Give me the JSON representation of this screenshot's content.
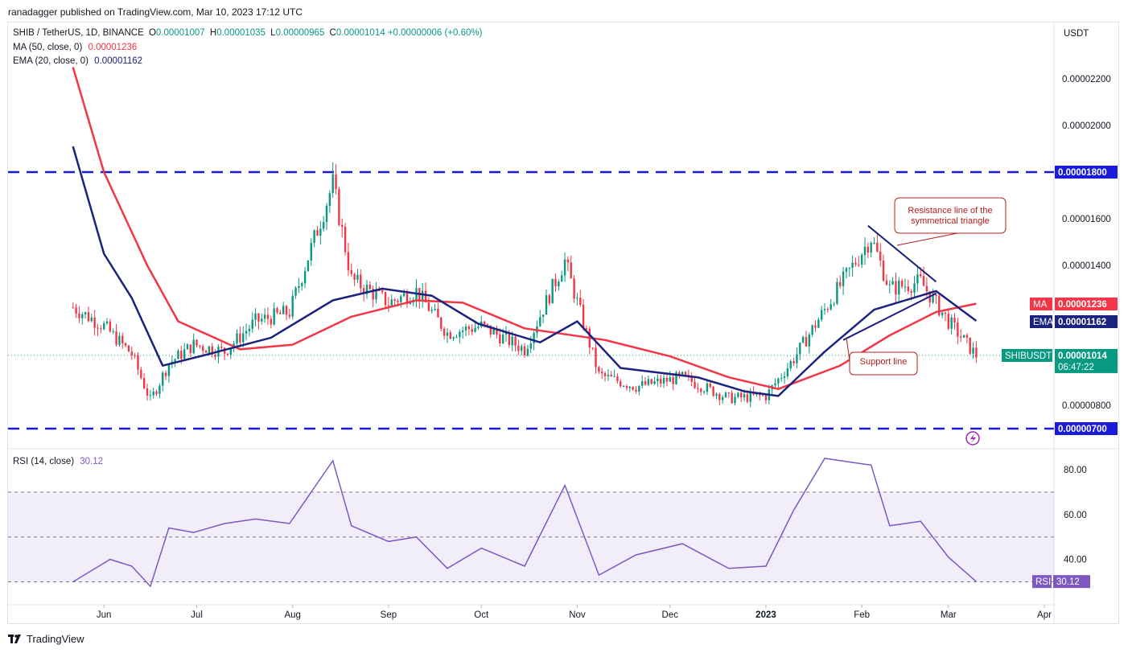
{
  "header": {
    "publisher": "ranadagger published on TradingView.com, Mar 10, 2023 17:12 UTC"
  },
  "legend": {
    "symbol": "SHIB / TetherUS, 1D, BINANCE",
    "o_label": "O",
    "o_value": "0.00001007",
    "h_label": "H",
    "h_value": "0.00001035",
    "l_label": "L",
    "l_value": "0.00000965",
    "c_label": "C",
    "c_value": "0.00001014",
    "change": "+0.00000006 (+0.60%)",
    "ma_label": "MA (50, close, 0)",
    "ma_value": "0.00001236",
    "ema_label": "EMA (20, close, 0)",
    "ema_value": "0.00001162",
    "rsi_label": "RSI (14, close)",
    "rsi_value": "30.12"
  },
  "footer": {
    "brand": "TradingView"
  },
  "colors": {
    "up": "#089981",
    "down": "#f23645",
    "ma": "#f23645",
    "ema": "#1a237e",
    "rsi": "#7e57c2",
    "level_line": "#1a1adb",
    "annotation": "#b71c1c"
  },
  "chart_data": {
    "type": "candlestick",
    "symbol": "SHIBUSDT",
    "y_axis_unit": "USDT",
    "y_ticks": [
      "0.00002200",
      "0.00002000",
      "0.00001600",
      "0.00001400",
      "0.00000800"
    ],
    "y_tick_values": [
      2.2e-05,
      2e-05,
      1.6e-05,
      1.4e-05,
      8e-06
    ],
    "x_ticks": [
      "Jun",
      "Jul",
      "Aug",
      "Sep",
      "Oct",
      "Nov",
      "Dec",
      "2023",
      "Feb",
      "Mar",
      "Apr"
    ],
    "horizontal_levels": [
      {
        "label": "0.00001800",
        "value": 1.8e-05
      },
      {
        "label": "0.00000700",
        "value": 7e-06
      }
    ],
    "price_badges": {
      "ma": {
        "label": "MA",
        "value": "0.00001236"
      },
      "ema": {
        "label": "EMA",
        "value": "0.00001162"
      },
      "last": {
        "label": "SHIBUSDT",
        "value": "0.00001014",
        "countdown": "06:47:22"
      }
    },
    "annotations": [
      {
        "text": "Resistance line of the symmetrical triangle"
      },
      {
        "text": "Support line"
      }
    ],
    "close_series_approx": [
      {
        "date": "2022-05-22",
        "close": 1.22e-05
      },
      {
        "date": "2022-06-01",
        "close": 1.14e-05
      },
      {
        "date": "2022-06-10",
        "close": 1.02e-05
      },
      {
        "date": "2022-06-16",
        "close": 8.2e-06
      },
      {
        "date": "2022-06-22",
        "close": 9.8e-06
      },
      {
        "date": "2022-06-30",
        "close": 1.06e-05
      },
      {
        "date": "2022-07-10",
        "close": 1.03e-05
      },
      {
        "date": "2022-07-20",
        "close": 1.16e-05
      },
      {
        "date": "2022-07-31",
        "close": 1.2e-05
      },
      {
        "date": "2022-08-14",
        "close": 1.75e-05
      },
      {
        "date": "2022-08-20",
        "close": 1.34e-05
      },
      {
        "date": "2022-09-01",
        "close": 1.24e-05
      },
      {
        "date": "2022-09-10",
        "close": 1.29e-05
      },
      {
        "date": "2022-09-20",
        "close": 1.11e-05
      },
      {
        "date": "2022-10-01",
        "close": 1.14e-05
      },
      {
        "date": "2022-10-15",
        "close": 1.04e-05
      },
      {
        "date": "2022-10-28",
        "close": 1.42e-05
      },
      {
        "date": "2022-11-08",
        "close": 9.3e-06
      },
      {
        "date": "2022-11-20",
        "close": 8.8e-06
      },
      {
        "date": "2022-12-05",
        "close": 9.2e-06
      },
      {
        "date": "2022-12-20",
        "close": 8.3e-06
      },
      {
        "date": "2023-01-01",
        "close": 8.4e-06
      },
      {
        "date": "2023-01-10",
        "close": 1e-05
      },
      {
        "date": "2023-01-20",
        "close": 1.21e-05
      },
      {
        "date": "2023-02-04",
        "close": 1.52e-05
      },
      {
        "date": "2023-02-10",
        "close": 1.3e-05
      },
      {
        "date": "2023-02-20",
        "close": 1.33e-05
      },
      {
        "date": "2023-03-01",
        "close": 1.16e-05
      },
      {
        "date": "2023-03-10",
        "close": 1.014e-05
      }
    ],
    "ma50_approx": [
      {
        "date": "2022-05-22",
        "value": 2.25e-05
      },
      {
        "date": "2022-06-01",
        "value": 1.8e-05
      },
      {
        "date": "2022-06-15",
        "value": 1.4e-05
      },
      {
        "date": "2022-06-25",
        "value": 1.16e-05
      },
      {
        "date": "2022-07-15",
        "value": 1.04e-05
      },
      {
        "date": "2022-08-01",
        "value": 1.06e-05
      },
      {
        "date": "2022-08-20",
        "value": 1.18e-05
      },
      {
        "date": "2022-09-10",
        "value": 1.25e-05
      },
      {
        "date": "2022-09-25",
        "value": 1.24e-05
      },
      {
        "date": "2022-10-15",
        "value": 1.13e-05
      },
      {
        "date": "2022-11-10",
        "value": 1.08e-05
      },
      {
        "date": "2022-12-01",
        "value": 1.01e-05
      },
      {
        "date": "2022-12-20",
        "value": 9.2e-06
      },
      {
        "date": "2023-01-05",
        "value": 8.7e-06
      },
      {
        "date": "2023-01-25",
        "value": 9.7e-06
      },
      {
        "date": "2023-02-10",
        "value": 1.1e-05
      },
      {
        "date": "2023-02-25",
        "value": 1.2e-05
      },
      {
        "date": "2023-03-10",
        "value": 1.236e-05
      }
    ],
    "ema20_approx": [
      {
        "date": "2022-05-22",
        "value": 1.91e-05
      },
      {
        "date": "2022-06-01",
        "value": 1.45e-05
      },
      {
        "date": "2022-06-10",
        "value": 1.26e-05
      },
      {
        "date": "2022-06-20",
        "value": 9.7e-06
      },
      {
        "date": "2022-07-05",
        "value": 1.02e-05
      },
      {
        "date": "2022-07-25",
        "value": 1.09e-05
      },
      {
        "date": "2022-08-14",
        "value": 1.25e-05
      },
      {
        "date": "2022-08-30",
        "value": 1.3e-05
      },
      {
        "date": "2022-09-15",
        "value": 1.27e-05
      },
      {
        "date": "2022-09-30",
        "value": 1.15e-05
      },
      {
        "date": "2022-10-20",
        "value": 1.07e-05
      },
      {
        "date": "2022-11-01",
        "value": 1.16e-05
      },
      {
        "date": "2022-11-15",
        "value": 9.6e-06
      },
      {
        "date": "2022-12-10",
        "value": 9.2e-06
      },
      {
        "date": "2022-12-25",
        "value": 8.6e-06
      },
      {
        "date": "2023-01-05",
        "value": 8.4e-06
      },
      {
        "date": "2023-01-20",
        "value": 1.03e-05
      },
      {
        "date": "2023-02-05",
        "value": 1.21e-05
      },
      {
        "date": "2023-02-25",
        "value": 1.29e-05
      },
      {
        "date": "2023-03-10",
        "value": 1.162e-05
      }
    ],
    "rsi": {
      "name": "RSI (14, close)",
      "y_ticks": [
        "80.00",
        "60.00",
        "40.00"
      ],
      "y_tick_values": [
        80,
        60,
        40
      ],
      "band": [
        30,
        70
      ],
      "mid": 50,
      "last": "30.12",
      "values_approx": [
        {
          "date": "2022-05-22",
          "value": 30
        },
        {
          "date": "2022-05-28",
          "value": 35
        },
        {
          "date": "2022-06-03",
          "value": 40
        },
        {
          "date": "2022-06-10",
          "value": 37
        },
        {
          "date": "2022-06-16",
          "value": 28
        },
        {
          "date": "2022-06-22",
          "value": 54
        },
        {
          "date": "2022-06-30",
          "value": 52
        },
        {
          "date": "2022-07-10",
          "value": 56
        },
        {
          "date": "2022-07-20",
          "value": 58
        },
        {
          "date": "2022-07-31",
          "value": 56
        },
        {
          "date": "2022-08-14",
          "value": 84
        },
        {
          "date": "2022-08-20",
          "value": 55
        },
        {
          "date": "2022-09-01",
          "value": 48
        },
        {
          "date": "2022-09-10",
          "value": 50
        },
        {
          "date": "2022-09-20",
          "value": 36
        },
        {
          "date": "2022-10-01",
          "value": 45
        },
        {
          "date": "2022-10-15",
          "value": 37
        },
        {
          "date": "2022-10-28",
          "value": 73
        },
        {
          "date": "2022-11-08",
          "value": 33
        },
        {
          "date": "2022-11-20",
          "value": 42
        },
        {
          "date": "2022-12-05",
          "value": 47
        },
        {
          "date": "2022-12-20",
          "value": 36
        },
        {
          "date": "2023-01-01",
          "value": 37
        },
        {
          "date": "2023-01-10",
          "value": 62
        },
        {
          "date": "2023-01-20",
          "value": 85
        },
        {
          "date": "2023-02-04",
          "value": 82
        },
        {
          "date": "2023-02-10",
          "value": 55
        },
        {
          "date": "2023-02-20",
          "value": 57
        },
        {
          "date": "2023-03-01",
          "value": 41
        },
        {
          "date": "2023-03-10",
          "value": 30.12
        }
      ]
    }
  }
}
